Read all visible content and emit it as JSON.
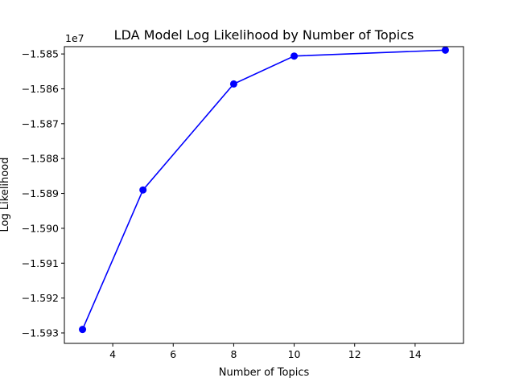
{
  "chart_data": {
    "type": "line",
    "title": "LDA Model Log Likelihood by Number of Topics",
    "xlabel": "Number of Topics",
    "ylabel": "Log Likelihood",
    "y_offset_text": "1e7",
    "x": [
      3,
      5,
      8,
      10,
      15
    ],
    "series": [
      {
        "values": [
          -15929000,
          -15889000,
          -15858600,
          -15850600,
          -15848900
        ],
        "color": "#0000ff",
        "marker": "circle"
      }
    ],
    "xlim": [
      2.4,
      15.6
    ],
    "ylim": [
      -15933000,
      -15847900
    ],
    "x_ticks": [
      4,
      6,
      8,
      10,
      12,
      14
    ],
    "x_tick_labels": [
      "4",
      "6",
      "8",
      "10",
      "12",
      "14"
    ],
    "y_ticks": [
      -15930000,
      -15920000,
      -15910000,
      -15900000,
      -15890000,
      -15880000,
      -15870000,
      -15860000,
      -15850000
    ],
    "y_tick_labels": [
      "−1.593",
      "−1.592",
      "−1.591",
      "−1.590",
      "−1.589",
      "−1.588",
      "−1.587",
      "−1.586",
      "−1.585"
    ],
    "grid": false,
    "legend": "none"
  }
}
